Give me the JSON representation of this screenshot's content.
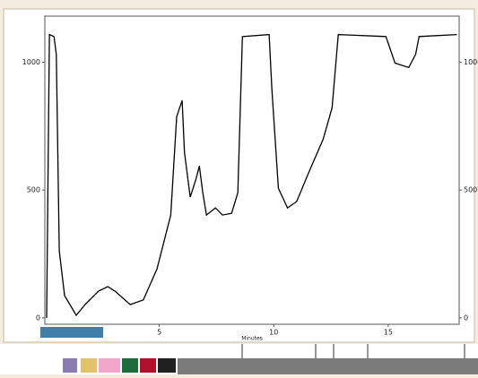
{
  "chart_data": {
    "type": "line",
    "x_label": "Minutes",
    "x": [
      0.08,
      0.2,
      0.4,
      0.5,
      0.63,
      0.86,
      1.37,
      1.76,
      2.35,
      2.75,
      3.06,
      3.73,
      4.3,
      4.9,
      5.5,
      5.76,
      6.0,
      6.1,
      6.35,
      6.6,
      6.75,
      6.9,
      7.06,
      7.45,
      7.76,
      8.16,
      8.43,
      8.63,
      9.8,
      9.92,
      10.2,
      10.6,
      11.0,
      11.57,
      12.16,
      12.55,
      12.82,
      14.9,
      15.3,
      15.9,
      16.2,
      16.35,
      18.0
    ],
    "series": [
      {
        "color": "#000000",
        "values": [
          0,
          1108,
          1100,
          1030,
          262,
          87,
          10,
          52,
          105,
          122,
          105,
          52,
          70,
          192,
          402,
          787,
          850,
          647,
          472,
          542,
          594,
          490,
          402,
          430,
          402,
          409,
          490,
          1100,
          1108,
          892,
          507,
          430,
          455,
          577,
          699,
          822,
          1108,
          1100,
          996,
          979,
          1031,
          1100,
          1108
        ]
      }
    ],
    "xlim": [
      0,
      18.1
    ],
    "ylim": [
      -25,
      1180
    ],
    "xticks": [
      5,
      10,
      15
    ],
    "yticks": [
      0,
      500,
      1000
    ]
  }
}
